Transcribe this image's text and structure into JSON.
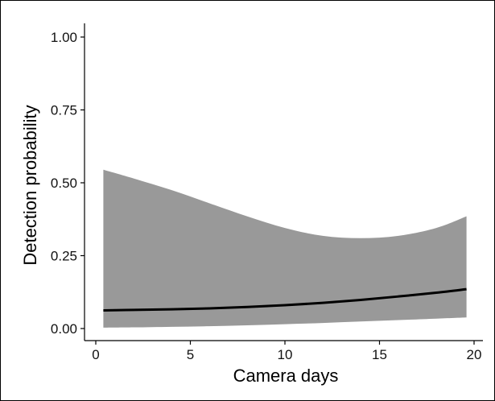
{
  "chart_data": {
    "type": "area",
    "title": "",
    "xlabel": "Camera days",
    "ylabel": "Detection probability",
    "xlim": [
      0,
      20
    ],
    "ylim": [
      0,
      1
    ],
    "grid": false,
    "x_ticks": [
      0,
      5,
      10,
      15,
      20
    ],
    "x_tick_labels": [
      "0",
      "5",
      "10",
      "15",
      "20"
    ],
    "y_ticks": [
      0,
      0.25,
      0.5,
      0.75,
      1.0
    ],
    "y_tick_labels": [
      "0.00",
      "0.25",
      "0.50",
      "0.75",
      "1.00"
    ],
    "colors": {
      "ribbon": "#999999",
      "line": "#000000"
    },
    "series": [
      {
        "kind": "line",
        "x": [
          0.4,
          2,
          4,
          6,
          8,
          10,
          12,
          14,
          16,
          18,
          19.6
        ],
        "y": [
          0.062,
          0.064,
          0.066,
          0.069,
          0.074,
          0.08,
          0.088,
          0.098,
          0.11,
          0.123,
          0.135
        ]
      },
      {
        "kind": "ribbon",
        "x": [
          0.4,
          2,
          4,
          6,
          8,
          10,
          12,
          14,
          16,
          18,
          19.6
        ],
        "upper": [
          0.545,
          0.515,
          0.475,
          0.43,
          0.385,
          0.345,
          0.318,
          0.31,
          0.318,
          0.345,
          0.385
        ],
        "lower": [
          0.003,
          0.004,
          0.006,
          0.008,
          0.011,
          0.015,
          0.019,
          0.024,
          0.029,
          0.034,
          0.038
        ]
      }
    ]
  }
}
